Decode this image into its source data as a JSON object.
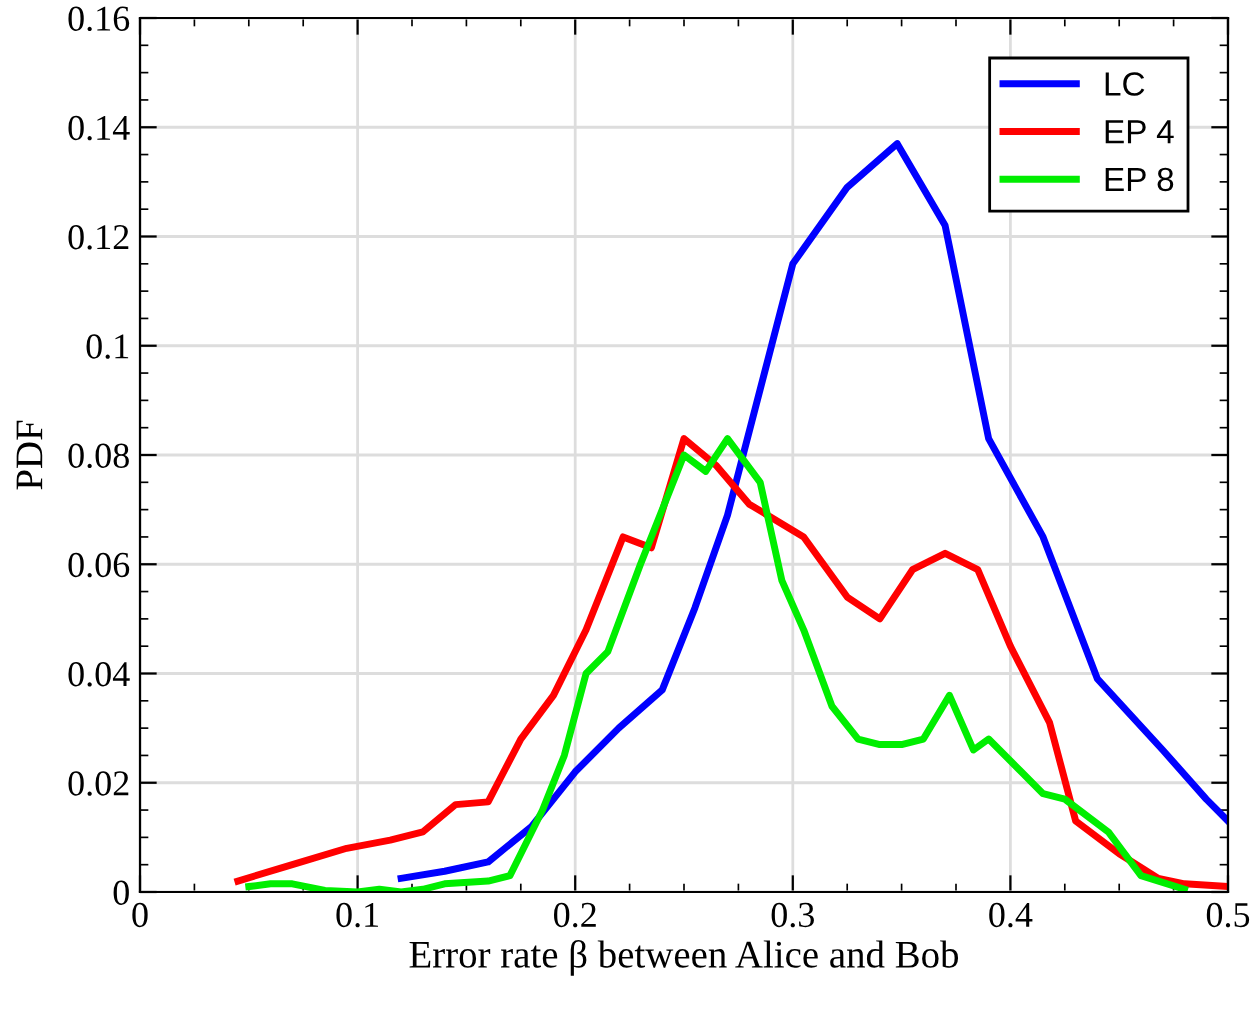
{
  "chart_data": {
    "type": "line",
    "xlabel": "Error rate β between Alice and Bob",
    "ylabel": "PDF",
    "xlim": [
      0,
      0.5
    ],
    "xticks": [
      0,
      0.1,
      0.2,
      0.3,
      0.4,
      0.5
    ],
    "ylim": [
      0,
      0.16
    ],
    "yticks": [
      0,
      0.02,
      0.04,
      0.06,
      0.08,
      0.1,
      0.12,
      0.14,
      0.16
    ],
    "grid": true,
    "legend": "top right",
    "marker": "none",
    "line_style": "solid",
    "series": [
      {
        "name": "LC",
        "color": "#0000ff",
        "x": [
          0.12,
          0.14,
          0.16,
          0.18,
          0.2,
          0.22,
          0.24,
          0.255,
          0.27,
          0.285,
          0.3,
          0.325,
          0.348,
          0.37,
          0.39,
          0.415,
          0.44,
          0.47,
          0.49,
          0.5
        ],
        "values": [
          0.0025,
          0.0038,
          0.0055,
          0.012,
          0.022,
          0.03,
          0.037,
          0.052,
          0.069,
          0.092,
          0.115,
          0.129,
          0.137,
          0.122,
          0.083,
          0.065,
          0.039,
          0.026,
          0.017,
          0.013
        ]
      },
      {
        "name": "EP 4",
        "color": "#ff0000",
        "x": [
          0.045,
          0.07,
          0.095,
          0.115,
          0.13,
          0.145,
          0.16,
          0.175,
          0.19,
          0.205,
          0.222,
          0.235,
          0.25,
          0.265,
          0.28,
          0.305,
          0.325,
          0.34,
          0.355,
          0.37,
          0.385,
          0.4,
          0.418,
          0.43,
          0.45,
          0.468,
          0.48,
          0.5
        ],
        "values": [
          0.002,
          0.005,
          0.008,
          0.0095,
          0.011,
          0.016,
          0.0165,
          0.028,
          0.036,
          0.048,
          0.065,
          0.063,
          0.083,
          0.078,
          0.071,
          0.065,
          0.054,
          0.05,
          0.059,
          0.062,
          0.059,
          0.045,
          0.031,
          0.013,
          0.007,
          0.0025,
          0.0015,
          0.001
        ]
      },
      {
        "name": "EP 8",
        "color": "#00ee00",
        "x": [
          0.05,
          0.06,
          0.07,
          0.085,
          0.1,
          0.11,
          0.12,
          0.13,
          0.14,
          0.16,
          0.17,
          0.185,
          0.195,
          0.205,
          0.215,
          0.23,
          0.25,
          0.26,
          0.27,
          0.285,
          0.295,
          0.305,
          0.318,
          0.33,
          0.34,
          0.35,
          0.36,
          0.372,
          0.383,
          0.39,
          0.405,
          0.415,
          0.425,
          0.445,
          0.46,
          0.48
        ],
        "values": [
          0.001,
          0.0015,
          0.0015,
          0.0003,
          0,
          0.0005,
          0,
          0.0005,
          0.0015,
          0.002,
          0.003,
          0.015,
          0.025,
          0.04,
          0.044,
          0.06,
          0.08,
          0.077,
          0.083,
          0.075,
          0.057,
          0.048,
          0.034,
          0.028,
          0.027,
          0.027,
          0.028,
          0.036,
          0.026,
          0.028,
          0.022,
          0.018,
          0.017,
          0.011,
          0.003,
          0.0005
        ]
      }
    ]
  }
}
